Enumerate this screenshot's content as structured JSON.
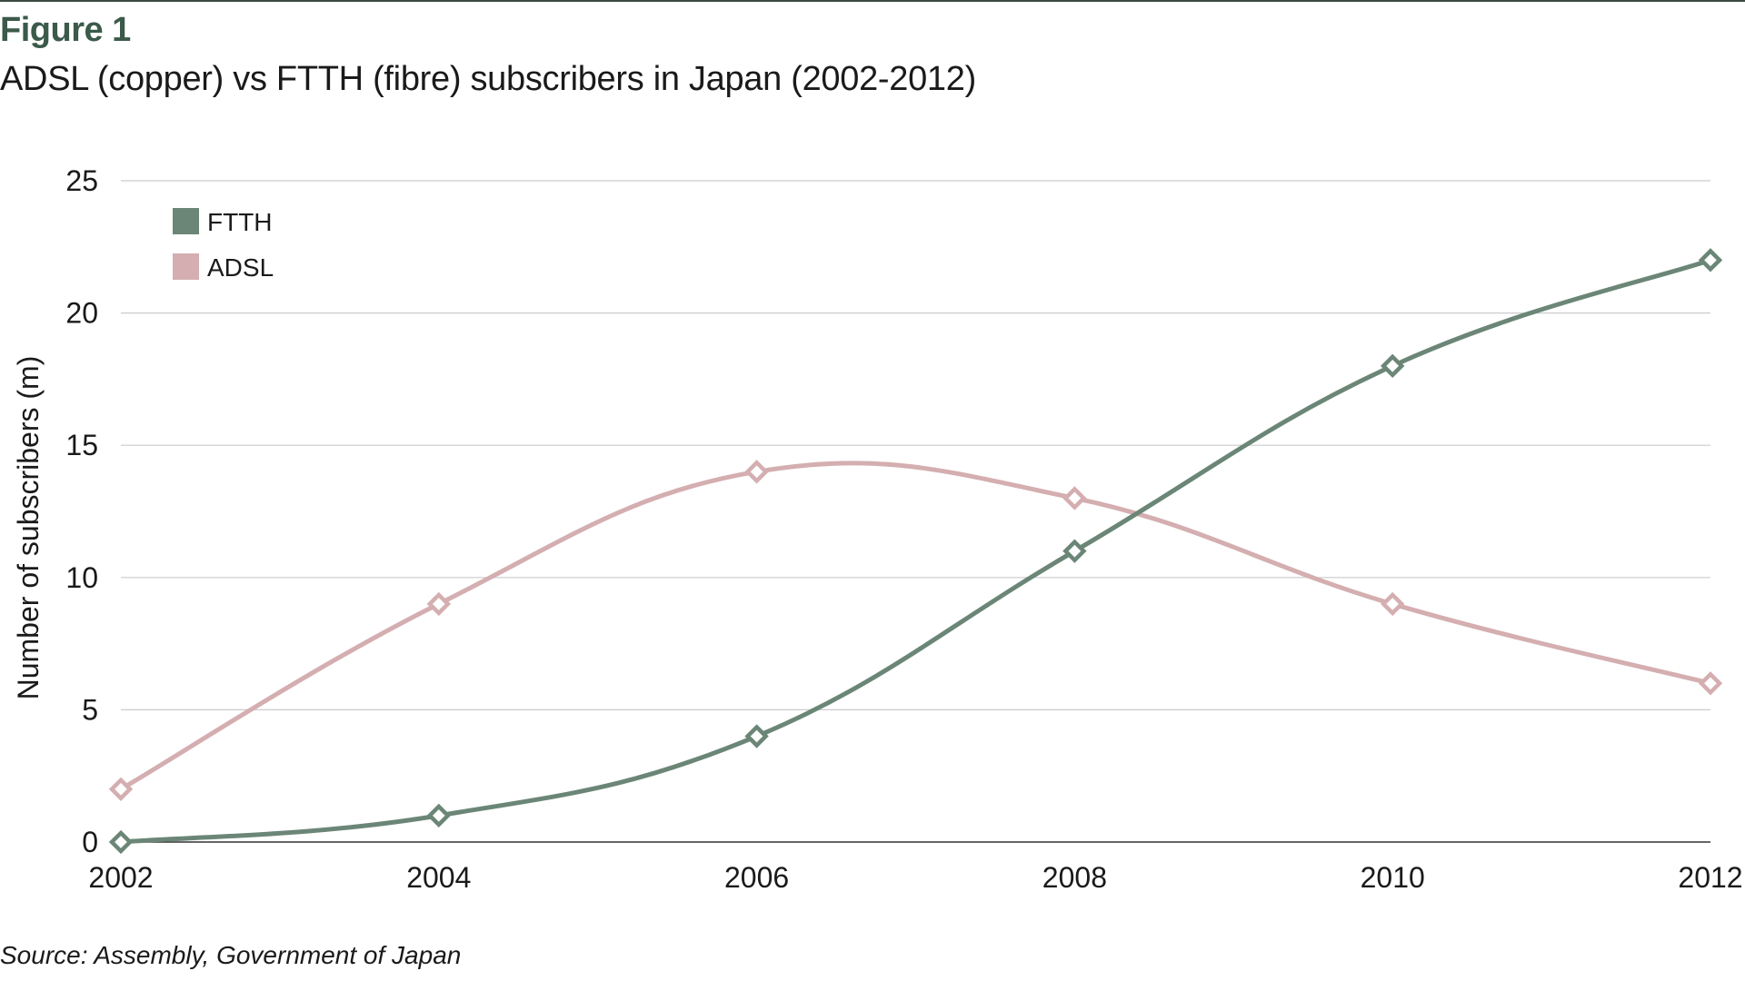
{
  "figure": {
    "label": "Figure 1",
    "title": "ADSL (copper) vs FTTH (fibre) subscribers in Japan (2002-2012)",
    "source": "Source: Assembly, Government of Japan"
  },
  "chart_data": {
    "type": "line",
    "title": "ADSL (copper) vs FTTH (fibre) subscribers in Japan (2002-2012)",
    "xlabel": "",
    "ylabel": "Number of subscribers (m)",
    "x": [
      2002,
      2004,
      2006,
      2008,
      2010,
      2012
    ],
    "x_tick_labels": [
      "2002",
      "2004",
      "2006",
      "2008",
      "2010",
      "2012"
    ],
    "ylim": [
      0,
      25
    ],
    "y_ticks": [
      0,
      5,
      10,
      15,
      20,
      25
    ],
    "y_tick_labels": [
      "0",
      "5",
      "10",
      "15",
      "20",
      "25"
    ],
    "grid": true,
    "legend_position": "top-left",
    "series": [
      {
        "name": "FTTH",
        "color": "#6b8677",
        "values": [
          0,
          1,
          4,
          11,
          18,
          22
        ]
      },
      {
        "name": "ADSL",
        "color": "#d4aeb0",
        "values": [
          2,
          9,
          14,
          13,
          9,
          6
        ]
      }
    ],
    "marker": "diamond",
    "gridline_color": "#cccccc",
    "axis_color": "#333333"
  }
}
